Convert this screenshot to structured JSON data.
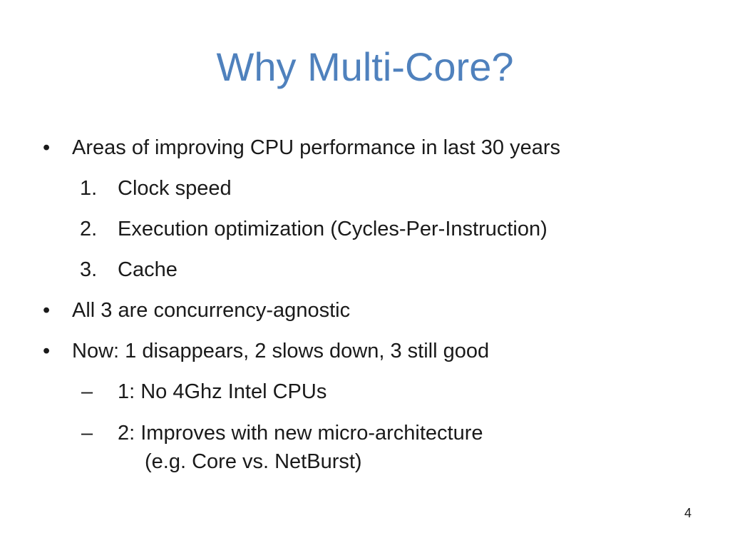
{
  "slide": {
    "title": "Why Multi-Core?",
    "page_number": "4",
    "items": [
      {
        "marker": "•",
        "text": "Areas of improving CPU performance in last 30 years"
      },
      {
        "marker": "1.",
        "text": "Clock speed"
      },
      {
        "marker": "2.",
        "text": "Execution optimization (Cycles-Per-Instruction)"
      },
      {
        "marker": "3.",
        "text": "Cache"
      },
      {
        "marker": "•",
        "text": "All 3 are concurrency-agnostic"
      },
      {
        "marker": "•",
        "text": "Now: 1 disappears, 2 slows down, 3 still good"
      },
      {
        "marker": "–",
        "text": "1: No 4Ghz Intel CPUs"
      },
      {
        "marker": "–",
        "text": "2: Improves with new micro-architecture",
        "continuation": "(e.g. Core vs. NetBurst)"
      }
    ]
  },
  "colors": {
    "title": "#4f81bd",
    "body_text": "#1a1a1a",
    "background": "#ffffff"
  }
}
